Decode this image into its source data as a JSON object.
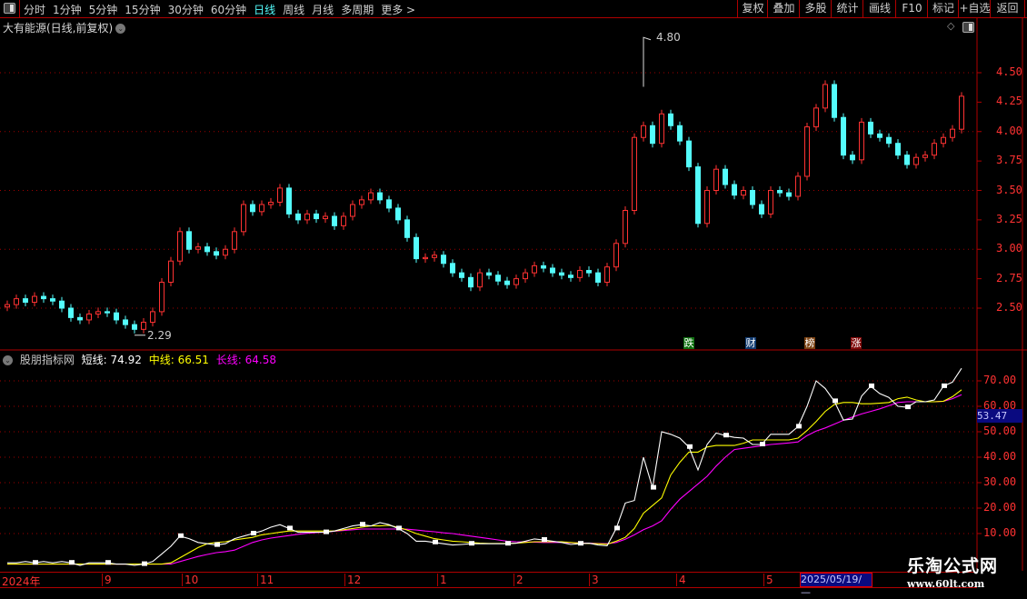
{
  "toolbar": {
    "tabs": [
      "分时",
      "1分钟",
      "5分钟",
      "15分钟",
      "30分钟",
      "60分钟",
      "日线",
      "周线",
      "月线",
      "多周期",
      "更多 >"
    ],
    "active_tab": "日线",
    "buttons": [
      "复权",
      "叠加",
      "多股",
      "统计",
      "画线",
      "F10",
      "标记",
      "+自选",
      "返回"
    ]
  },
  "stock_title": "大有能源(日线,前复权)",
  "indicator": {
    "name": "股朋指标网",
    "short_label": "短线: 74.92",
    "mid_label": "中线: 66.51",
    "long_label": "长线: 64.58",
    "current_axis_value": "53.47"
  },
  "event_tags": [
    {
      "text": "跌",
      "color": "#107010"
    },
    {
      "text": "财",
      "color": "#103a70"
    },
    {
      "text": "榜",
      "color": "#7a4010"
    },
    {
      "text": "涨",
      "color": "#800808"
    }
  ],
  "x_axis": {
    "labels": [
      "2024年",
      "9",
      "10",
      "11",
      "12",
      "1",
      "2",
      "3",
      "4",
      "5"
    ],
    "current_date": "2025/05/19/—"
  },
  "watermark": {
    "title": "乐淘公式网",
    "url": "www.60lt.com"
  },
  "colors": {
    "up": "#ff3232",
    "down": "#54fcfc",
    "short": "#ffffff",
    "mid": "#ffff00",
    "long": "#ff00ff",
    "grid": "#a00000",
    "axis_text": "#ff3232"
  },
  "chart_data": [
    {
      "type": "candlestick",
      "title": "大有能源(日线,前复权)",
      "y_ticks": [
        "4.50",
        "4.25",
        "4.00",
        "3.75",
        "3.50",
        "3.25",
        "3.00",
        "2.75",
        "2.50"
      ],
      "ylim": [
        2.2,
        4.85
      ],
      "grid": true,
      "annotations": [
        {
          "label": "4.80",
          "type": "high"
        },
        {
          "label": "2.29",
          "type": "low"
        }
      ],
      "closes": [
        2.53,
        2.58,
        2.55,
        2.6,
        2.58,
        2.56,
        2.5,
        2.42,
        2.4,
        2.45,
        2.47,
        2.46,
        2.4,
        2.36,
        2.32,
        2.38,
        2.47,
        2.72,
        2.9,
        3.15,
        3.0,
        3.02,
        2.98,
        2.95,
        3.0,
        3.15,
        3.38,
        3.32,
        3.38,
        3.4,
        3.52,
        3.3,
        3.25,
        3.3,
        3.26,
        3.28,
        3.2,
        3.28,
        3.38,
        3.42,
        3.48,
        3.42,
        3.35,
        3.25,
        3.1,
        2.92,
        2.93,
        2.95,
        2.88,
        2.8,
        2.76,
        2.68,
        2.8,
        2.78,
        2.73,
        2.7,
        2.75,
        2.8,
        2.86,
        2.84,
        2.8,
        2.78,
        2.76,
        2.82,
        2.8,
        2.72,
        2.85,
        3.05,
        3.33,
        3.95,
        4.05,
        3.9,
        4.15,
        4.05,
        3.92,
        3.7,
        3.22,
        3.5,
        3.68,
        3.55,
        3.46,
        3.5,
        3.38,
        3.3,
        3.5,
        3.48,
        3.45,
        3.62,
        4.04,
        4.2,
        4.4,
        4.12,
        3.8,
        3.76,
        4.08,
        3.98,
        3.95,
        3.9,
        3.8,
        3.72,
        3.78,
        3.8,
        3.9,
        3.95,
        4.02,
        4.3
      ]
    },
    {
      "type": "line",
      "y_ticks": [
        "70.00",
        "60.00",
        "50.00",
        "40.00",
        "30.00",
        "20.00",
        "10.00"
      ],
      "ylim": [
        -3,
        78
      ],
      "grid": true,
      "series": [
        {
          "name": "短线",
          "color": "#ffffff",
          "values": [
            -1.5,
            -1.5,
            -1,
            -1.5,
            -1,
            -1.5,
            -1,
            -1.5,
            -2.5,
            -1.5,
            -1.5,
            -1.5,
            -2,
            -2,
            -2.5,
            -2,
            -1,
            2,
            5,
            9,
            8,
            6.5,
            6,
            5.5,
            6,
            8,
            9,
            10,
            11,
            12.5,
            13.5,
            12,
            10.5,
            10.5,
            10.5,
            10.5,
            11,
            12,
            13,
            13.5,
            13,
            14.3,
            13.5,
            12,
            10,
            7,
            7,
            6.5,
            6,
            5.5,
            5.7,
            6,
            6,
            6,
            6,
            6,
            6.2,
            7,
            7.9,
            7.5,
            7,
            6.5,
            5.7,
            6,
            6.2,
            5.5,
            5.2,
            12,
            22,
            23,
            40,
            28,
            50,
            49,
            47.5,
            44,
            35,
            45,
            49.5,
            48.5,
            47.8,
            47.5,
            45,
            45,
            49,
            49,
            49,
            52,
            60,
            70,
            67,
            62,
            54.6,
            55,
            64,
            67.9,
            65,
            63.5,
            60,
            59.6,
            61.8,
            61.8,
            62.5,
            67.9,
            69.5,
            74.92
          ]
        },
        {
          "name": "中线",
          "color": "#ffff00",
          "values": [
            -2,
            -2,
            -2,
            -2,
            -2,
            -2,
            -2,
            -2,
            -2,
            -2,
            -2,
            -2,
            -2,
            -2,
            -2,
            -2,
            -2,
            -2,
            -1.5,
            0.5,
            2.5,
            4.5,
            6,
            6.5,
            6.8,
            7.5,
            8,
            8.5,
            9.5,
            10,
            10.5,
            11,
            11,
            11,
            11,
            11,
            11,
            11.5,
            12,
            12.5,
            13,
            13,
            13.2,
            12.5,
            11.4,
            10,
            9,
            8,
            7.5,
            7,
            6.8,
            6.5,
            6.2,
            6.1,
            6.1,
            6.1,
            6.2,
            6.5,
            6.8,
            6.8,
            6.8,
            6.8,
            6.5,
            6.2,
            6.1,
            6,
            5.8,
            7,
            8.5,
            12,
            18,
            21,
            24,
            33,
            38,
            42,
            42,
            44,
            44.6,
            44.6,
            44.6,
            45.5,
            46.8,
            46.8,
            46.8,
            46.8,
            46.8,
            47.5,
            50.5,
            54,
            58,
            60.7,
            61.5,
            61.5,
            61,
            61,
            61.2,
            61.5,
            63,
            63.6,
            62.5,
            61.8,
            61.8,
            62,
            63.8,
            66.51
          ]
        },
        {
          "name": "长线",
          "color": "#ff00ff",
          "values": [
            -2,
            -2,
            -2,
            -2,
            -2,
            -2,
            -2,
            -2,
            -2,
            -2,
            -2,
            -2,
            -2,
            -2,
            -2,
            -2,
            -2,
            -2,
            -2,
            -1,
            0,
            1,
            1.8,
            2.5,
            2.9,
            3.5,
            5,
            6.5,
            7.5,
            8.2,
            8.7,
            9.2,
            9.7,
            10.1,
            10.4,
            10.6,
            10.9,
            11.2,
            11.5,
            11.8,
            11.8,
            11.8,
            11.8,
            11.8,
            11.7,
            11.4,
            11,
            10.7,
            10.3,
            10,
            9.5,
            9,
            8.5,
            8,
            7.5,
            7,
            6.8,
            6.7,
            6.6,
            6.5,
            6.5,
            6.5,
            6.4,
            6.3,
            6.2,
            6.1,
            6,
            6.5,
            7.8,
            9.5,
            11.5,
            13,
            15,
            19.5,
            23.5,
            26.5,
            29.5,
            32.5,
            36.5,
            40,
            43,
            43.5,
            44,
            44.5,
            45,
            45.3,
            45.6,
            46,
            48.5,
            50.3,
            51.5,
            53,
            54.5,
            55.8,
            57,
            58,
            59,
            60.2,
            61.5,
            61.8,
            61.8,
            61.8,
            61.8,
            62,
            63,
            64.58
          ]
        }
      ]
    }
  ]
}
